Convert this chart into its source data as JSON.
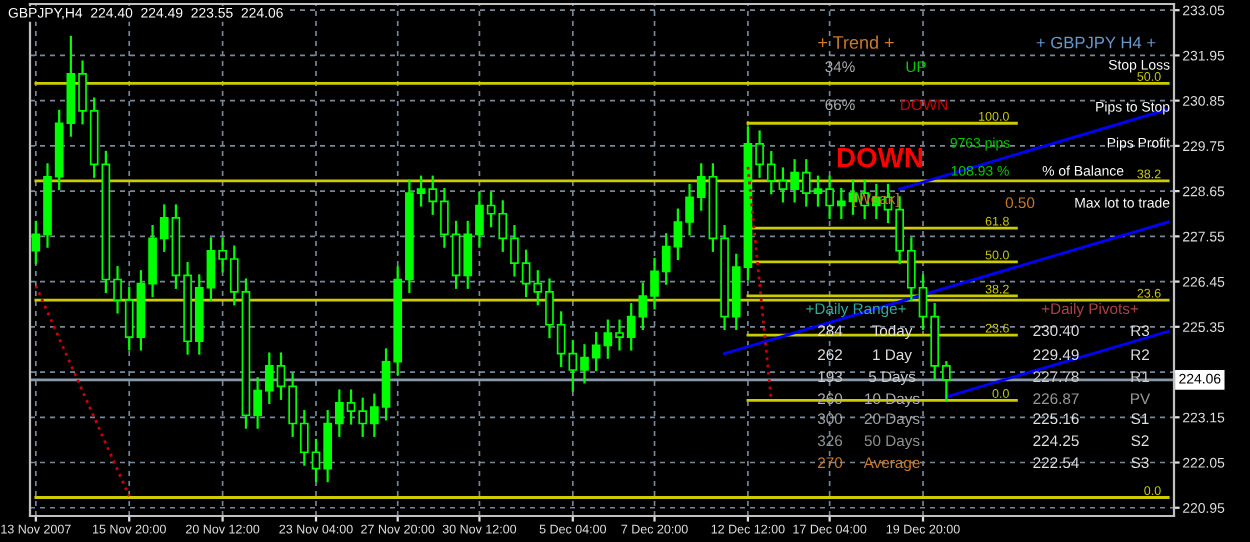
{
  "chart_data": {
    "type": "candlestick",
    "title": "GBPJPY,H4  224.40  224.49  223.55  224.06",
    "categories": [
      "13 Nov 2007",
      null,
      null,
      null,
      null,
      null,
      null,
      null,
      "15 Nov 20:00",
      null,
      null,
      null,
      null,
      null,
      null,
      null,
      "20 Nov 12:00",
      null,
      null,
      null,
      null,
      null,
      null,
      null,
      "23 Nov 04:00",
      null,
      null,
      null,
      null,
      null,
      null,
      "27 Nov 20:00",
      null,
      null,
      null,
      null,
      null,
      null,
      "30 Nov 12:00",
      null,
      null,
      null,
      null,
      null,
      null,
      null,
      "5 Dec 04:00",
      null,
      null,
      null,
      null,
      null,
      null,
      "7 Dec 20:00",
      null,
      null,
      null,
      null,
      null,
      null,
      null,
      "12 Dec 12:00",
      null,
      null,
      null,
      null,
      null,
      null,
      "17 Dec 04:00",
      null,
      null,
      null,
      null,
      null,
      null,
      null,
      "19 Dec 20:00",
      null,
      null,
      null,
      null,
      null,
      null,
      null,
      null,
      null,
      null,
      null,
      null,
      null,
      null,
      null,
      null,
      null,
      null,
      null,
      null,
      null
    ],
    "color": "#00ff00",
    "ohlc": [
      [
        227.2,
        227.9,
        226.9,
        227.6
      ],
      [
        227.6,
        229.3,
        227.3,
        229.0
      ],
      [
        229.0,
        230.6,
        228.7,
        230.3
      ],
      [
        230.3,
        232.4,
        230.0,
        231.5
      ],
      [
        231.5,
        231.8,
        230.3,
        230.6
      ],
      [
        230.6,
        230.9,
        229.0,
        229.3
      ],
      [
        229.3,
        229.6,
        226.2,
        226.5
      ],
      [
        226.5,
        226.8,
        225.7,
        226.0
      ],
      [
        226.0,
        226.3,
        224.8,
        225.1
      ],
      [
        225.1,
        226.7,
        224.8,
        226.4
      ],
      [
        226.4,
        227.8,
        226.1,
        227.5
      ],
      [
        227.5,
        228.3,
        227.2,
        228.0
      ],
      [
        228.0,
        228.3,
        226.3,
        226.6
      ],
      [
        226.6,
        226.9,
        224.7,
        225.0
      ],
      [
        225.0,
        226.6,
        224.7,
        226.3
      ],
      [
        226.3,
        227.5,
        226.0,
        227.2
      ],
      [
        227.2,
        227.5,
        226.7,
        227.0
      ],
      [
        227.0,
        227.3,
        225.9,
        226.2
      ],
      [
        226.2,
        226.5,
        222.9,
        223.2
      ],
      [
        223.2,
        224.1,
        222.9,
        223.8
      ],
      [
        223.8,
        224.7,
        223.5,
        224.4
      ],
      [
        224.4,
        224.7,
        223.6,
        223.9
      ],
      [
        223.9,
        224.2,
        222.7,
        223.0
      ],
      [
        223.0,
        223.3,
        222.0,
        222.3
      ],
      [
        222.3,
        222.6,
        221.6,
        221.9
      ],
      [
        221.9,
        223.3,
        221.6,
        223.0
      ],
      [
        223.0,
        223.8,
        222.7,
        223.5
      ],
      [
        223.5,
        223.8,
        223.0,
        223.3
      ],
      [
        223.3,
        223.6,
        222.7,
        223.0
      ],
      [
        223.0,
        223.7,
        222.7,
        223.4
      ],
      [
        223.4,
        224.8,
        223.1,
        224.5
      ],
      [
        224.5,
        226.8,
        224.2,
        226.5
      ],
      [
        226.5,
        228.9,
        226.2,
        228.6
      ],
      [
        228.6,
        229.0,
        228.3,
        228.7
      ],
      [
        228.7,
        229.0,
        228.1,
        228.4
      ],
      [
        228.4,
        228.7,
        227.3,
        227.6
      ],
      [
        227.6,
        227.9,
        226.3,
        226.6
      ],
      [
        226.6,
        227.9,
        226.3,
        227.6
      ],
      [
        227.6,
        228.6,
        227.3,
        228.3
      ],
      [
        228.3,
        228.6,
        227.8,
        228.1
      ],
      [
        228.1,
        228.4,
        227.2,
        227.5
      ],
      [
        227.5,
        227.8,
        226.6,
        226.9
      ],
      [
        226.9,
        227.2,
        226.1,
        226.4
      ],
      [
        226.4,
        226.7,
        225.9,
        226.2
      ],
      [
        226.2,
        226.5,
        225.1,
        225.4
      ],
      [
        225.4,
        225.7,
        224.4,
        224.7
      ],
      [
        224.7,
        225.0,
        223.8,
        224.3
      ],
      [
        224.3,
        224.9,
        224.0,
        224.6
      ],
      [
        224.6,
        225.2,
        224.3,
        224.9
      ],
      [
        224.9,
        225.5,
        224.6,
        225.2
      ],
      [
        225.2,
        225.5,
        224.8,
        225.1
      ],
      [
        225.1,
        225.9,
        224.8,
        225.6
      ],
      [
        225.6,
        226.4,
        225.3,
        226.1
      ],
      [
        226.1,
        227.0,
        225.8,
        226.7
      ],
      [
        226.7,
        227.6,
        226.4,
        227.3
      ],
      [
        227.3,
        228.2,
        227.0,
        227.9
      ],
      [
        227.9,
        228.8,
        227.6,
        228.5
      ],
      [
        228.5,
        229.3,
        228.2,
        229.0
      ],
      [
        229.0,
        229.3,
        227.2,
        227.5
      ],
      [
        227.5,
        227.8,
        225.3,
        225.6
      ],
      [
        225.6,
        227.1,
        225.3,
        226.8
      ],
      [
        226.8,
        230.2,
        226.5,
        229.8
      ],
      [
        229.8,
        230.1,
        229.0,
        229.3
      ],
      [
        229.3,
        229.6,
        228.6,
        228.9
      ],
      [
        228.9,
        229.2,
        228.4,
        228.7
      ],
      [
        228.7,
        229.4,
        228.4,
        229.1
      ],
      [
        229.1,
        229.4,
        228.3,
        228.6
      ],
      [
        228.6,
        229.0,
        228.3,
        228.7
      ],
      [
        228.7,
        229.0,
        228.0,
        228.3
      ],
      [
        228.3,
        228.7,
        228.0,
        228.4
      ],
      [
        228.4,
        228.9,
        228.1,
        228.6
      ],
      [
        228.6,
        228.9,
        228.0,
        228.3
      ],
      [
        228.3,
        228.8,
        228.0,
        228.5
      ],
      [
        228.5,
        228.8,
        227.9,
        228.2
      ],
      [
        228.2,
        228.5,
        226.9,
        227.2
      ],
      [
        227.2,
        227.5,
        226.0,
        226.3
      ],
      [
        226.3,
        226.6,
        225.3,
        225.6
      ],
      [
        225.6,
        225.9,
        224.1,
        224.4
      ],
      [
        224.4,
        224.49,
        223.55,
        224.06
      ],
      null,
      null,
      null,
      null,
      null,
      null,
      null,
      null,
      null,
      null,
      null,
      null,
      null,
      null,
      null,
      null,
      null,
      null,
      null
    ],
    "ylim": [
      220.75,
      233.2
    ],
    "yticks": [
      233.05,
      231.95,
      230.85,
      229.75,
      228.65,
      227.55,
      226.45,
      225.35,
      {
        "value": 224.25,
        "label": null
      },
      223.15,
      222.05,
      220.95
    ],
    "grid": true,
    "series": [
      {
        "type": "line",
        "name": "50.0",
        "color": "#cccc00",
        "values": [
          231.27,
          null,
          null,
          null,
          null,
          null,
          null,
          null,
          null,
          null,
          null,
          null,
          null,
          null,
          null,
          null,
          null,
          null,
          null,
          null,
          null,
          null,
          null,
          null,
          null,
          null,
          null,
          null,
          null,
          null,
          null,
          null,
          null,
          null,
          null,
          null,
          null,
          null,
          null,
          null,
          null,
          null,
          null,
          null,
          null,
          null,
          null,
          null,
          null,
          null,
          null,
          null,
          null,
          null,
          null,
          null,
          null,
          null,
          null,
          null,
          null,
          null,
          null,
          null,
          null,
          null,
          null,
          null,
          null,
          null,
          null,
          null,
          null,
          null,
          null,
          null,
          null,
          null,
          null,
          null,
          null,
          null,
          null,
          null,
          null,
          null,
          null,
          null,
          null,
          null,
          null,
          null,
          null,
          null,
          null,
          null,
          null,
          231.27
        ]
      },
      {
        "type": "line",
        "name": "38.2",
        "color": "#cccc00",
        "values": [
          228.9,
          null,
          null,
          null,
          null,
          null,
          null,
          null,
          null,
          null,
          null,
          null,
          null,
          null,
          null,
          null,
          null,
          null,
          null,
          null,
          null,
          null,
          null,
          null,
          null,
          null,
          null,
          null,
          null,
          null,
          null,
          null,
          null,
          null,
          null,
          null,
          null,
          null,
          null,
          null,
          null,
          null,
          null,
          null,
          null,
          null,
          null,
          null,
          null,
          null,
          null,
          null,
          null,
          null,
          null,
          null,
          null,
          null,
          null,
          null,
          null,
          null,
          null,
          null,
          null,
          null,
          null,
          null,
          null,
          null,
          null,
          null,
          null,
          null,
          null,
          null,
          null,
          null,
          null,
          null,
          null,
          null,
          null,
          null,
          null,
          null,
          null,
          null,
          null,
          null,
          null,
          null,
          null,
          null,
          null,
          null,
          null,
          228.9
        ]
      },
      {
        "type": "line",
        "name": "23.6",
        "color": "#cccc00",
        "values": [
          226.0,
          null,
          null,
          null,
          null,
          null,
          null,
          null,
          null,
          null,
          null,
          null,
          null,
          null,
          null,
          null,
          null,
          null,
          null,
          null,
          null,
          null,
          null,
          null,
          null,
          null,
          null,
          null,
          null,
          null,
          null,
          null,
          null,
          null,
          null,
          null,
          null,
          null,
          null,
          null,
          null,
          null,
          null,
          null,
          null,
          null,
          null,
          null,
          null,
          null,
          null,
          null,
          null,
          null,
          null,
          null,
          null,
          null,
          null,
          null,
          null,
          null,
          null,
          null,
          null,
          null,
          null,
          null,
          null,
          null,
          null,
          null,
          null,
          null,
          null,
          null,
          null,
          null,
          null,
          null,
          null,
          null,
          null,
          null,
          null,
          null,
          null,
          null,
          null,
          null,
          null,
          null,
          null,
          null,
          null,
          null,
          null,
          226.0
        ]
      },
      {
        "type": "line",
        "name": "0.0",
        "color": "#cccc00",
        "values": [
          221.2,
          null,
          null,
          null,
          null,
          null,
          null,
          null,
          null,
          null,
          null,
          null,
          null,
          null,
          null,
          null,
          null,
          null,
          null,
          null,
          null,
          null,
          null,
          null,
          null,
          null,
          null,
          null,
          null,
          null,
          null,
          null,
          null,
          null,
          null,
          null,
          null,
          null,
          null,
          null,
          null,
          null,
          null,
          null,
          null,
          null,
          null,
          null,
          null,
          null,
          null,
          null,
          null,
          null,
          null,
          null,
          null,
          null,
          null,
          null,
          null,
          null,
          null,
          null,
          null,
          null,
          null,
          null,
          null,
          null,
          null,
          null,
          null,
          null,
          null,
          null,
          null,
          null,
          null,
          null,
          null,
          null,
          null,
          null,
          null,
          null,
          null,
          null,
          null,
          null,
          null,
          null,
          null,
          null,
          null,
          null,
          null,
          221.2
        ]
      },
      {
        "type": "line",
        "name": "100.0",
        "color": "#cccc00",
        "values": [
          null,
          null,
          null,
          null,
          null,
          null,
          null,
          null,
          null,
          null,
          null,
          null,
          null,
          null,
          null,
          null,
          null,
          null,
          null,
          null,
          null,
          null,
          null,
          null,
          null,
          null,
          null,
          null,
          null,
          null,
          null,
          null,
          null,
          null,
          null,
          null,
          null,
          null,
          null,
          null,
          null,
          null,
          null,
          null,
          null,
          null,
          null,
          null,
          null,
          null,
          null,
          null,
          null,
          null,
          null,
          null,
          null,
          null,
          null,
          null,
          null,
          230.3,
          null,
          null,
          null,
          null,
          null,
          null,
          null,
          null,
          null,
          null,
          null,
          null,
          null,
          null,
          null,
          null,
          null,
          null,
          null,
          null,
          null,
          null,
          230.3,
          null,
          null,
          null,
          null,
          null,
          null,
          null,
          null,
          null,
          null,
          null,
          null,
          null
        ]
      },
      {
        "type": "line",
        "name": "61.8",
        "color": "#cccc00",
        "values": [
          null,
          null,
          null,
          null,
          null,
          null,
          null,
          null,
          null,
          null,
          null,
          null,
          null,
          null,
          null,
          null,
          null,
          null,
          null,
          null,
          null,
          null,
          null,
          null,
          null,
          null,
          null,
          null,
          null,
          null,
          null,
          null,
          null,
          null,
          null,
          null,
          null,
          null,
          null,
          null,
          null,
          null,
          null,
          null,
          null,
          null,
          null,
          null,
          null,
          null,
          null,
          null,
          null,
          null,
          null,
          null,
          null,
          null,
          null,
          null,
          null,
          227.75,
          null,
          null,
          null,
          null,
          null,
          null,
          null,
          null,
          null,
          null,
          null,
          null,
          null,
          null,
          null,
          null,
          null,
          null,
          null,
          null,
          null,
          null,
          227.75,
          null,
          null,
          null,
          null,
          null,
          null,
          null,
          null,
          null,
          null,
          null,
          null,
          null
        ]
      },
      {
        "type": "line",
        "name": "50.0",
        "color": "#cccc00",
        "values": [
          null,
          null,
          null,
          null,
          null,
          null,
          null,
          null,
          null,
          null,
          null,
          null,
          null,
          null,
          null,
          null,
          null,
          null,
          null,
          null,
          null,
          null,
          null,
          null,
          null,
          null,
          null,
          null,
          null,
          null,
          null,
          null,
          null,
          null,
          null,
          null,
          null,
          null,
          null,
          null,
          null,
          null,
          null,
          null,
          null,
          null,
          null,
          null,
          null,
          null,
          null,
          null,
          null,
          null,
          null,
          null,
          null,
          null,
          null,
          null,
          null,
          226.93,
          null,
          null,
          null,
          null,
          null,
          null,
          null,
          null,
          null,
          null,
          null,
          null,
          null,
          null,
          null,
          null,
          null,
          null,
          null,
          null,
          null,
          null,
          226.93,
          null,
          null,
          null,
          null,
          null,
          null,
          null,
          null,
          null,
          null,
          null,
          null,
          null
        ]
      },
      {
        "type": "line",
        "name": "38.2",
        "color": "#cccc00",
        "values": [
          null,
          null,
          null,
          null,
          null,
          null,
          null,
          null,
          null,
          null,
          null,
          null,
          null,
          null,
          null,
          null,
          null,
          null,
          null,
          null,
          null,
          null,
          null,
          null,
          null,
          null,
          null,
          null,
          null,
          null,
          null,
          null,
          null,
          null,
          null,
          null,
          null,
          null,
          null,
          null,
          null,
          null,
          null,
          null,
          null,
          null,
          null,
          null,
          null,
          null,
          null,
          null,
          null,
          null,
          null,
          null,
          null,
          null,
          null,
          null,
          null,
          226.1,
          null,
          null,
          null,
          null,
          null,
          null,
          null,
          null,
          null,
          null,
          null,
          null,
          null,
          null,
          null,
          null,
          null,
          null,
          null,
          null,
          null,
          null,
          226.1,
          null,
          null,
          null,
          null,
          null,
          null,
          null,
          null,
          null,
          null,
          null,
          null,
          null
        ]
      },
      {
        "type": "line",
        "name": "23.6",
        "color": "#cccc00",
        "values": [
          null,
          null,
          null,
          null,
          null,
          null,
          null,
          null,
          null,
          null,
          null,
          null,
          null,
          null,
          null,
          null,
          null,
          null,
          null,
          null,
          null,
          null,
          null,
          null,
          null,
          null,
          null,
          null,
          null,
          null,
          null,
          null,
          null,
          null,
          null,
          null,
          null,
          null,
          null,
          null,
          null,
          null,
          null,
          null,
          null,
          null,
          null,
          null,
          null,
          null,
          null,
          null,
          null,
          null,
          null,
          null,
          null,
          null,
          null,
          null,
          null,
          225.15,
          null,
          null,
          null,
          null,
          null,
          null,
          null,
          null,
          null,
          null,
          null,
          null,
          null,
          null,
          null,
          null,
          null,
          null,
          null,
          null,
          null,
          null,
          225.15,
          null,
          null,
          null,
          null,
          null,
          null,
          null,
          null,
          null,
          null,
          null,
          null,
          null
        ]
      },
      {
        "type": "line",
        "name": "0.0",
        "color": "#cccc00",
        "values": [
          null,
          null,
          null,
          null,
          null,
          null,
          null,
          null,
          null,
          null,
          null,
          null,
          null,
          null,
          null,
          null,
          null,
          null,
          null,
          null,
          null,
          null,
          null,
          null,
          null,
          null,
          null,
          null,
          null,
          null,
          null,
          null,
          null,
          null,
          null,
          null,
          null,
          null,
          null,
          null,
          null,
          null,
          null,
          null,
          null,
          null,
          null,
          null,
          null,
          null,
          null,
          null,
          null,
          null,
          null,
          null,
          null,
          null,
          null,
          null,
          null,
          223.56,
          null,
          null,
          null,
          null,
          null,
          null,
          null,
          null,
          null,
          null,
          null,
          null,
          null,
          null,
          null,
          null,
          null,
          null,
          null,
          null,
          null,
          null,
          223.56,
          null,
          null,
          null,
          null,
          null,
          null,
          null,
          null,
          null,
          null,
          null,
          null,
          null
        ]
      },
      {
        "type": "line",
        "color": "#0000ff",
        "values": [
          null,
          null,
          null,
          null,
          null,
          null,
          null,
          null,
          null,
          null,
          null,
          null,
          null,
          null,
          null,
          null,
          null,
          null,
          null,
          null,
          null,
          null,
          null,
          null,
          null,
          null,
          null,
          null,
          null,
          null,
          null,
          null,
          null,
          null,
          null,
          null,
          null,
          null,
          null,
          null,
          null,
          null,
          null,
          null,
          null,
          null,
          null,
          null,
          null,
          null,
          null,
          null,
          null,
          null,
          null,
          null,
          null,
          null,
          null,
          224.7,
          null,
          null,
          null,
          null,
          null,
          null,
          null,
          null,
          null,
          null,
          null,
          null,
          null,
          null,
          null,
          null,
          null,
          null,
          null,
          null,
          null,
          null,
          null,
          null,
          null,
          null,
          null,
          null,
          null,
          null,
          null,
          null,
          null,
          null,
          null,
          null,
          null,
          227.9
        ]
      },
      {
        "type": "line",
        "color": "#0000ff",
        "values": [
          null,
          null,
          null,
          null,
          null,
          null,
          null,
          null,
          null,
          null,
          null,
          null,
          null,
          null,
          null,
          null,
          null,
          null,
          null,
          null,
          null,
          null,
          null,
          null,
          null,
          null,
          null,
          null,
          null,
          null,
          null,
          null,
          null,
          null,
          null,
          null,
          null,
          null,
          null,
          null,
          null,
          null,
          null,
          null,
          null,
          null,
          null,
          null,
          null,
          null,
          null,
          null,
          null,
          null,
          null,
          null,
          null,
          null,
          null,
          null,
          null,
          null,
          null,
          null,
          null,
          null,
          null,
          null,
          null,
          null,
          null,
          null,
          null,
          null,
          228.7,
          null,
          null,
          null,
          null,
          null,
          null,
          null,
          null,
          null,
          null,
          null,
          null,
          null,
          null,
          null,
          null,
          null,
          null,
          null,
          null,
          null,
          null,
          230.64
        ]
      },
      {
        "type": "line",
        "color": "#0000ff",
        "values": [
          null,
          null,
          null,
          null,
          null,
          null,
          null,
          null,
          null,
          null,
          null,
          null,
          null,
          null,
          null,
          null,
          null,
          null,
          null,
          null,
          null,
          null,
          null,
          null,
          null,
          null,
          null,
          null,
          null,
          null,
          null,
          null,
          null,
          null,
          null,
          null,
          null,
          null,
          null,
          null,
          null,
          null,
          null,
          null,
          null,
          null,
          null,
          null,
          null,
          null,
          null,
          null,
          null,
          null,
          null,
          null,
          null,
          null,
          null,
          null,
          null,
          null,
          null,
          null,
          null,
          null,
          null,
          null,
          null,
          null,
          null,
          null,
          null,
          null,
          null,
          null,
          null,
          null,
          223.65,
          null,
          null,
          null,
          null,
          null,
          null,
          null,
          null,
          null,
          null,
          null,
          null,
          null,
          null,
          null,
          null,
          null,
          null,
          225.24
        ]
      },
      {
        "type": "line",
        "color": "#cc0000",
        "line_style": "dotted",
        "values": [
          226.35,
          null,
          null,
          null,
          null,
          null,
          null,
          null,
          221.23,
          null,
          null,
          null,
          null,
          null,
          null,
          null,
          null,
          null,
          null,
          null,
          null,
          null,
          null,
          null,
          null,
          null,
          null,
          null,
          null,
          null,
          null,
          null,
          null,
          null,
          null,
          null,
          null,
          null,
          null,
          null,
          null,
          null,
          null,
          null,
          null,
          null,
          null,
          null,
          null,
          null,
          null,
          null,
          null,
          null,
          null,
          null,
          null,
          null,
          null,
          null,
          null,
          null,
          null,
          null,
          null,
          null,
          null,
          null,
          null,
          null,
          null,
          null,
          null,
          null,
          null,
          null,
          null,
          null,
          null,
          null,
          null,
          null,
          null,
          null,
          null,
          null,
          null,
          null,
          null,
          null,
          null,
          null,
          null,
          null,
          null,
          null,
          null,
          null
        ]
      },
      {
        "type": "line",
        "color": "#cc0000",
        "line_style": "dotted",
        "values": [
          null,
          null,
          null,
          null,
          null,
          null,
          null,
          null,
          null,
          null,
          null,
          null,
          null,
          null,
          null,
          null,
          null,
          null,
          null,
          null,
          null,
          null,
          null,
          null,
          null,
          null,
          null,
          null,
          null,
          null,
          null,
          null,
          null,
          null,
          null,
          null,
          null,
          null,
          null,
          null,
          null,
          null,
          null,
          null,
          null,
          null,
          null,
          null,
          null,
          null,
          null,
          null,
          null,
          null,
          null,
          null,
          null,
          null,
          null,
          null,
          null,
          229.24,
          null,
          223.56,
          null,
          null,
          null,
          null,
          null,
          null,
          null,
          null,
          null,
          null,
          null,
          null,
          null,
          null,
          null,
          null,
          null,
          null,
          null,
          null,
          null,
          null,
          null,
          null,
          null,
          null,
          null,
          null,
          null,
          null,
          null,
          null,
          null,
          null
        ]
      }
    ],
    "ref_lines": [
      {
        "axis": "y",
        "value": 224.06,
        "label": "224.06",
        "color": "#8899aa"
      }
    ],
    "annotations": [
      "+ Trend +",
      "+ GBPJPY H4 +",
      "34%",
      "UP",
      "66%",
      "DOWN",
      "DOWN",
      "[Weak]",
      "Stop Loss",
      "Pips to Stop",
      "9763 pips",
      "Pips Profit",
      "108.93 %",
      "% of Balance",
      "0.50",
      "Max lot to trade",
      "+Daily Range+",
      "+Daily Pivots+",
      "284",
      "Today",
      "262",
      "1 Day",
      "193",
      "5 Days",
      "260",
      "10 Days",
      "300",
      "20 Days",
      "326",
      "50 Days",
      "270",
      "Average",
      "230.40",
      "R3",
      "229.49",
      "R2",
      "227.78",
      "R1",
      "226.87",
      "PV",
      "225.16",
      "S1",
      "224.25",
      "S2",
      "222.54",
      "S3"
    ]
  }
}
